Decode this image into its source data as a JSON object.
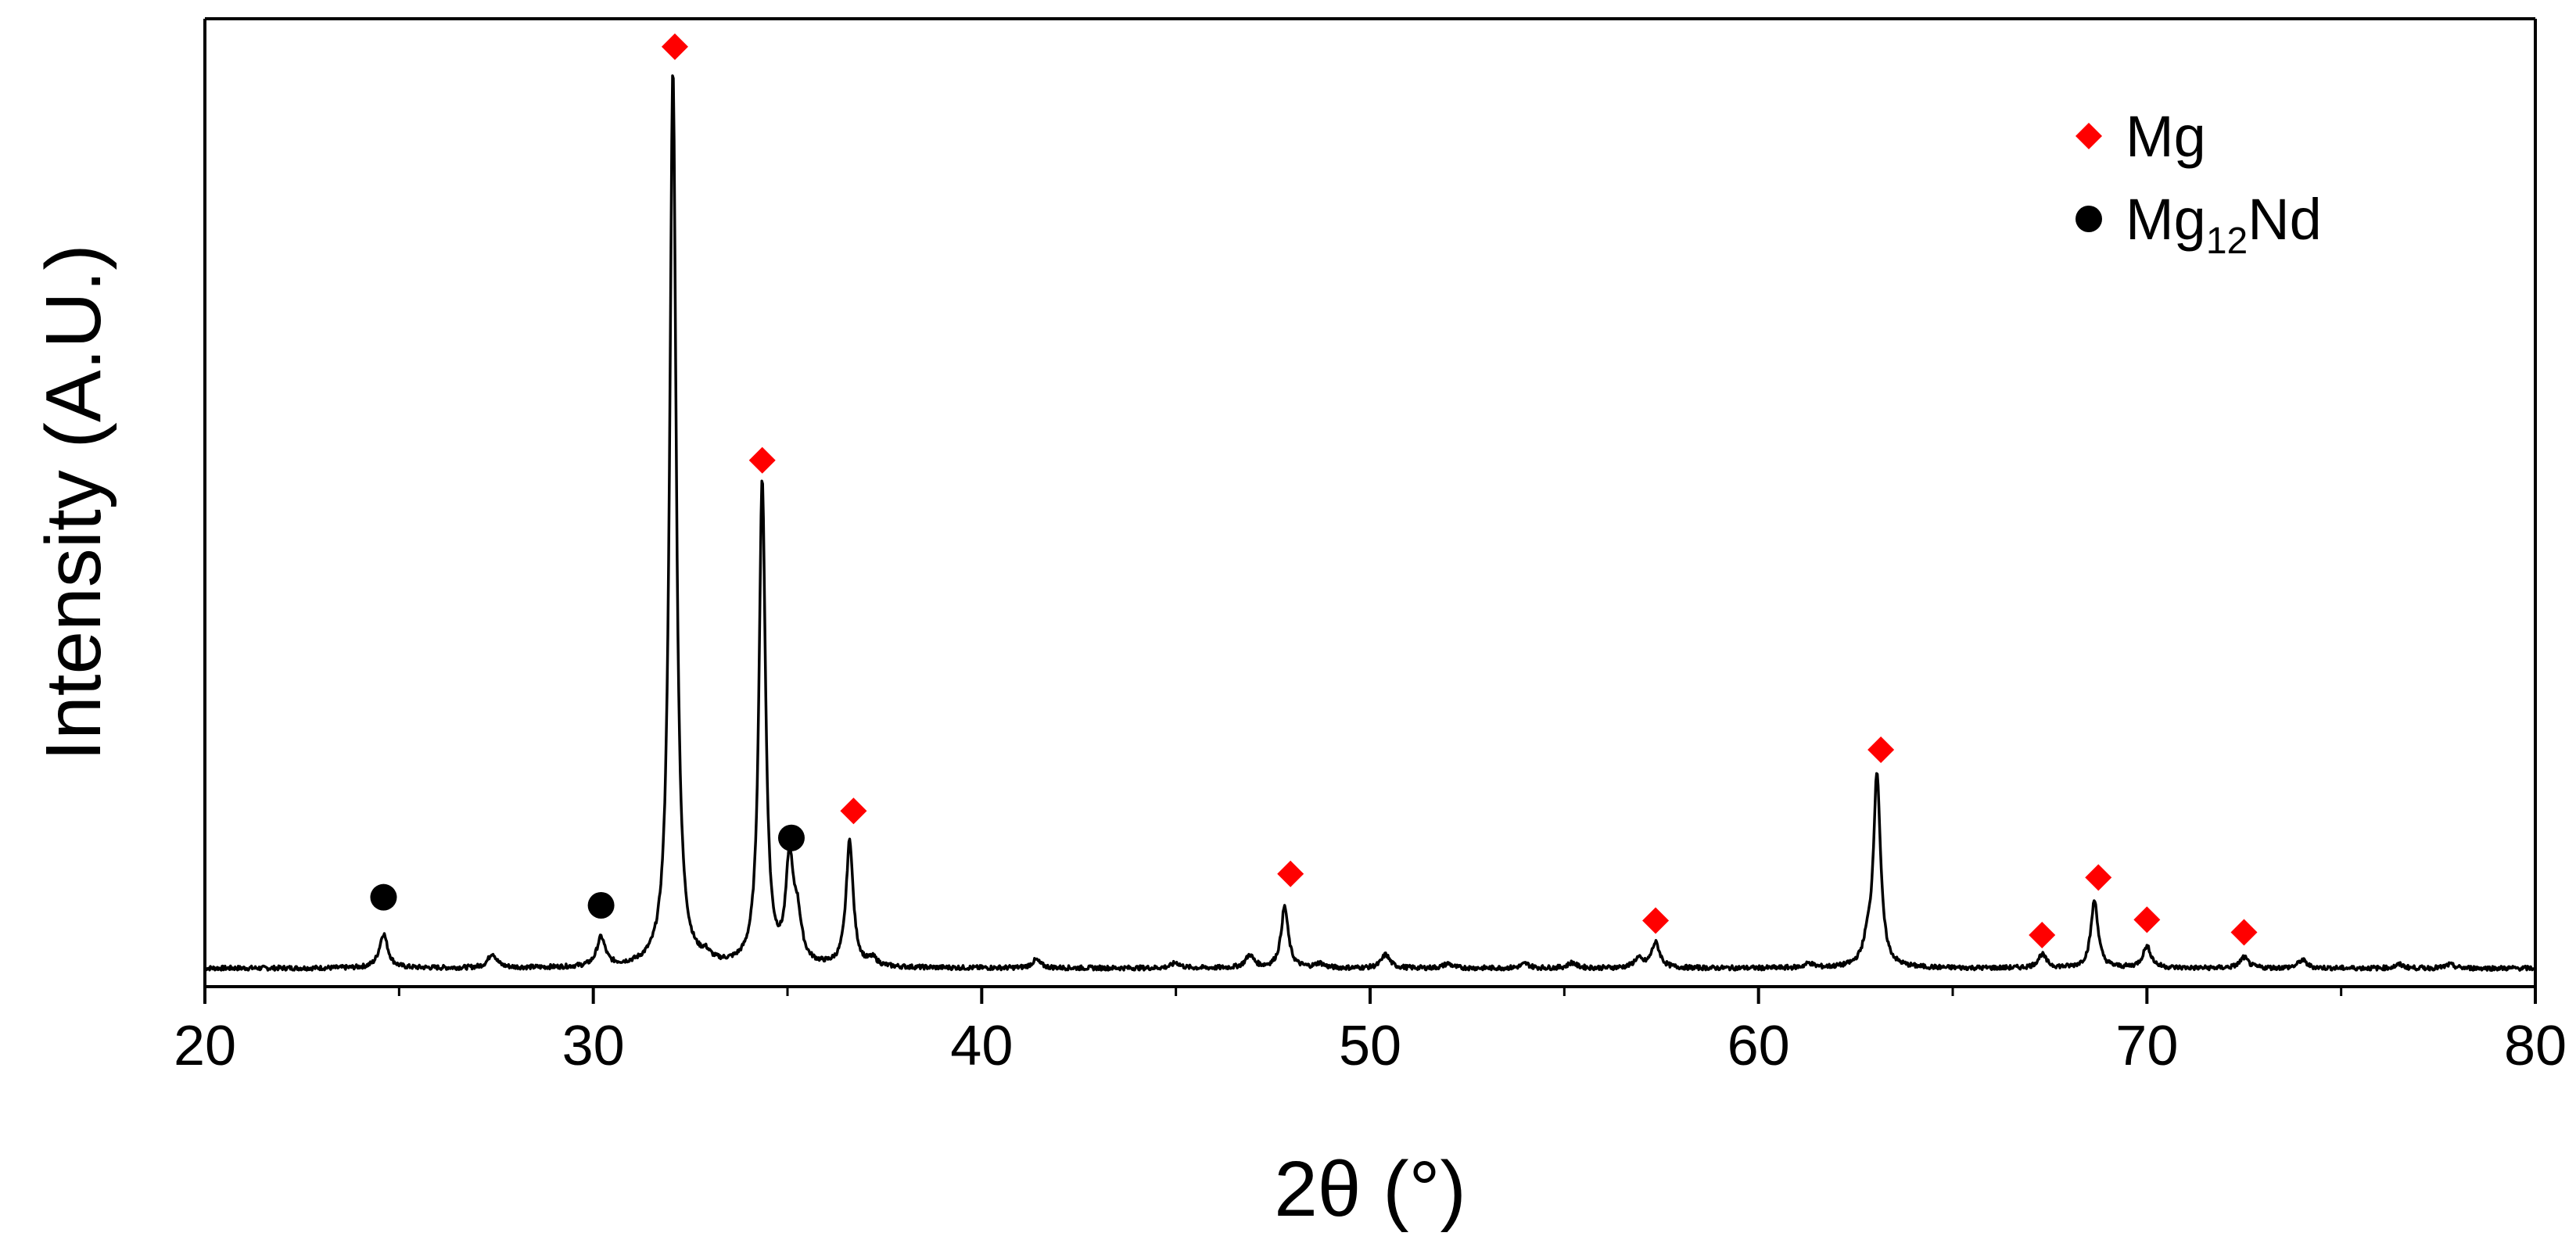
{
  "chart_data": {
    "type": "line",
    "title": "",
    "xlabel": "2θ (°)",
    "ylabel": "Intensity (A.U.)",
    "xlim": [
      20,
      80
    ],
    "ylim": [
      0,
      100
    ],
    "x_ticks": [
      "20",
      "30",
      "40",
      "50",
      "60",
      "70",
      "80"
    ],
    "grid": false,
    "legend_position": "top-right",
    "colors": {
      "line": "#000000",
      "mg_marker": "#ff0000",
      "mg12nd_marker": "#000000"
    },
    "background_level": 1.0,
    "series": [
      {
        "peaks": [
          {
            "x": 24.6,
            "y": 3.8
          },
          {
            "x": 27.4,
            "y": 1.6
          },
          {
            "x": 30.2,
            "y": 3.2
          },
          {
            "x": 32.05,
            "y": 100
          },
          {
            "x": 32.9,
            "y": 0.8
          },
          {
            "x": 34.35,
            "y": 54
          },
          {
            "x": 35.05,
            "y": 11
          },
          {
            "x": 35.25,
            "y": 5
          },
          {
            "x": 36.6,
            "y": 14
          },
          {
            "x": 37.2,
            "y": 0.8
          },
          {
            "x": 41.4,
            "y": 0.9
          },
          {
            "x": 45.0,
            "y": 0.6
          },
          {
            "x": 46.9,
            "y": 1.4
          },
          {
            "x": 47.8,
            "y": 6.8
          },
          {
            "x": 48.7,
            "y": 0.5
          },
          {
            "x": 50.4,
            "y": 1.5
          },
          {
            "x": 52.0,
            "y": 0.5
          },
          {
            "x": 54.0,
            "y": 0.5
          },
          {
            "x": 55.2,
            "y": 0.6
          },
          {
            "x": 56.9,
            "y": 1.0
          },
          {
            "x": 57.35,
            "y": 2.8
          },
          {
            "x": 61.3,
            "y": 0.5
          },
          {
            "x": 62.8,
            "y": 2.0
          },
          {
            "x": 63.05,
            "y": 21.5
          },
          {
            "x": 67.3,
            "y": 1.5
          },
          {
            "x": 68.65,
            "y": 7.5
          },
          {
            "x": 70.0,
            "y": 2.4
          },
          {
            "x": 72.5,
            "y": 1.2
          },
          {
            "x": 74.0,
            "y": 0.9
          },
          {
            "x": 76.5,
            "y": 0.4
          },
          {
            "x": 77.8,
            "y": 0.4
          }
        ]
      }
    ],
    "markers": [
      {
        "phase": "Mg",
        "shape": "diamond",
        "x": 32.1,
        "y": 103.5
      },
      {
        "phase": "Mg",
        "shape": "diamond",
        "x": 34.35,
        "y": 57.5
      },
      {
        "phase": "Mg",
        "shape": "diamond",
        "x": 36.7,
        "y": 18.5
      },
      {
        "phase": "Mg",
        "shape": "diamond",
        "x": 47.95,
        "y": 11.5
      },
      {
        "phase": "Mg",
        "shape": "diamond",
        "x": 57.35,
        "y": 6.3
      },
      {
        "phase": "Mg",
        "shape": "diamond",
        "x": 63.15,
        "y": 25.3
      },
      {
        "phase": "Mg",
        "shape": "diamond",
        "x": 67.3,
        "y": 4.7
      },
      {
        "phase": "Mg",
        "shape": "diamond",
        "x": 68.75,
        "y": 11.1
      },
      {
        "phase": "Mg",
        "shape": "diamond",
        "x": 70.0,
        "y": 6.4
      },
      {
        "phase": "Mg",
        "shape": "diamond",
        "x": 72.5,
        "y": 5.0
      },
      {
        "phase": "Mg12Nd",
        "shape": "circle",
        "x": 24.6,
        "y": 8.9
      },
      {
        "phase": "Mg12Nd",
        "shape": "circle",
        "x": 30.2,
        "y": 8.0
      },
      {
        "phase": "Mg12Nd",
        "shape": "circle",
        "x": 35.1,
        "y": 15.5
      }
    ],
    "legend": [
      {
        "shape": "diamond",
        "color": "#ff0000",
        "label": "Mg",
        "label_main": "Mg",
        "label_sub": "",
        "label_tail": ""
      },
      {
        "shape": "circle",
        "color": "#000000",
        "label": "Mg12Nd",
        "label_main": "Mg",
        "label_sub": "12",
        "label_tail": "Nd"
      }
    ]
  }
}
